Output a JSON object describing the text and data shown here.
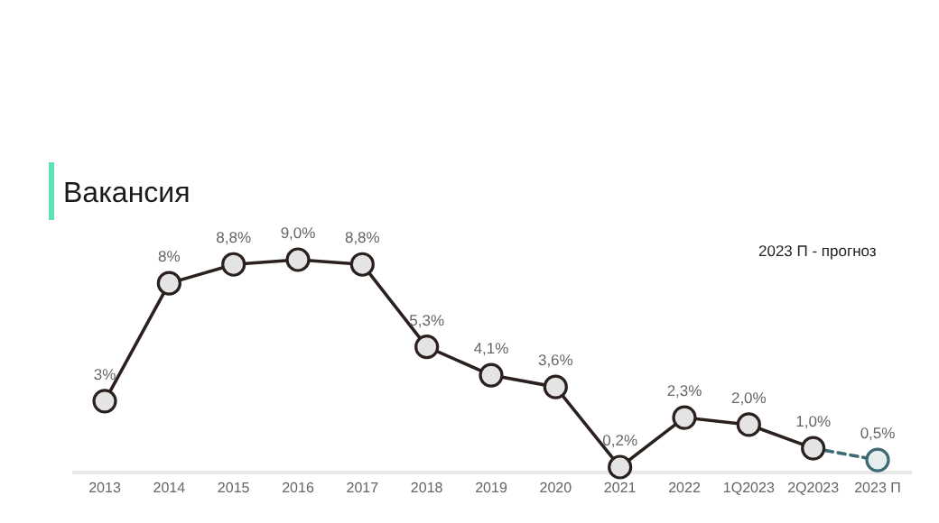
{
  "chart_data": {
    "type": "line",
    "title": "Вакансия",
    "annotations": [
      "2023 П - прогноз"
    ],
    "categories": [
      "2013",
      "2014",
      "2015",
      "2016",
      "2017",
      "2018",
      "2019",
      "2020",
      "2021",
      "2022",
      "1Q2023",
      "2Q2023",
      "2023 П"
    ],
    "tick_labels": "x",
    "marker": "circle",
    "series": [
      {
        "color": "#2a211e",
        "line_style": "solid",
        "values": [
          3,
          8,
          8.8,
          9.0,
          8.8,
          5.3,
          4.1,
          3.6,
          0.2,
          2.3,
          2.0,
          1.0,
          null
        ],
        "value_labels": [
          "3%",
          "8%",
          "8,8%",
          "9,0%",
          "8,8%",
          "5,3%",
          "4,1%",
          "3,6%",
          "0,2%",
          "2,3%",
          "2,0%",
          "1,0%",
          null
        ]
      },
      {
        "color": "#3d6b73",
        "line_style": "dashed",
        "values": [
          null,
          null,
          null,
          null,
          null,
          null,
          null,
          null,
          null,
          null,
          null,
          1.0,
          0.5
        ],
        "value_labels": [
          null,
          null,
          null,
          null,
          null,
          null,
          null,
          null,
          null,
          null,
          null,
          null,
          "0,5%"
        ]
      }
    ]
  }
}
